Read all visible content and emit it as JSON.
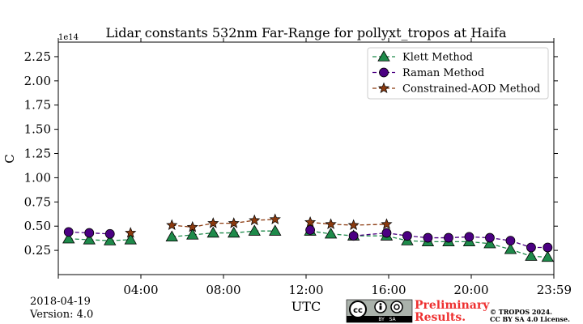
{
  "chart_data": {
    "type": "line",
    "title": "Lidar constants 532nm Far-Range for pollyxt_tropos at Haifa",
    "xlabel": "UTC",
    "ylabel": "C",
    "y_exponent_label": "1e14",
    "y_scale": 100000000000000.0,
    "xlim_hours": [
      0,
      24
    ],
    "ylim": [
      0.0,
      2.4
    ],
    "x_tick_hours": [
      4,
      8,
      12,
      16,
      20,
      24
    ],
    "x_tick_labels": [
      "04:00",
      "08:00",
      "12:00",
      "16:00",
      "20:00",
      "23:59"
    ],
    "y_ticks": [
      0.25,
      0.5,
      0.75,
      1.0,
      1.25,
      1.5,
      1.75,
      2.0,
      2.25
    ],
    "y_tick_labels": [
      "0.25",
      "0.50",
      "0.75",
      "1.00",
      "1.25",
      "1.50",
      "1.75",
      "2.00",
      "2.25"
    ],
    "legend_position": "top-right",
    "series": [
      {
        "name": "Klett Method",
        "marker": "triangle",
        "color": "#1e8a4a",
        "x_hours": [
          0.5,
          1.5,
          2.5,
          3.5,
          5.5,
          6.5,
          7.5,
          8.5,
          9.5,
          10.5,
          12.2,
          13.2,
          14.3,
          15.9,
          16.9,
          17.9,
          18.9,
          19.9,
          20.9,
          21.9,
          22.9,
          23.7
        ],
        "values": [
          0.37,
          0.36,
          0.35,
          0.36,
          0.39,
          0.41,
          0.43,
          0.43,
          0.45,
          0.45,
          0.45,
          0.42,
          0.4,
          0.4,
          0.35,
          0.34,
          0.34,
          0.34,
          0.32,
          0.26,
          0.19,
          0.18
        ]
      },
      {
        "name": "Raman Method",
        "marker": "circle",
        "color": "#4b0082",
        "x_hours": [
          0.5,
          1.5,
          2.5,
          12.2,
          14.3,
          15.9,
          16.9,
          17.9,
          18.9,
          19.9,
          20.9,
          21.9,
          22.9,
          23.7
        ],
        "values": [
          0.44,
          0.43,
          0.42,
          0.46,
          0.4,
          0.43,
          0.4,
          0.38,
          0.38,
          0.39,
          0.38,
          0.35,
          0.28,
          0.28
        ]
      },
      {
        "name": "Constrained-AOD Method",
        "marker": "star",
        "color": "#8b3a0f",
        "x_hours": [
          3.5,
          5.5,
          6.5,
          7.5,
          8.5,
          9.5,
          10.5,
          12.2,
          13.2,
          14.3,
          15.9
        ],
        "values": [
          0.43,
          0.51,
          0.49,
          0.53,
          0.53,
          0.56,
          0.57,
          0.54,
          0.52,
          0.51,
          0.52
        ]
      }
    ]
  },
  "footer": {
    "date": "2018-04-19",
    "version": "Version: 4.0",
    "preliminary_line1": "Preliminary",
    "preliminary_line2": "Results.",
    "copyright_line1": "© TROPOS 2024.",
    "copyright_line2": "CC BY SA 4.0 License.",
    "license_badge_text": "BY   SA"
  }
}
